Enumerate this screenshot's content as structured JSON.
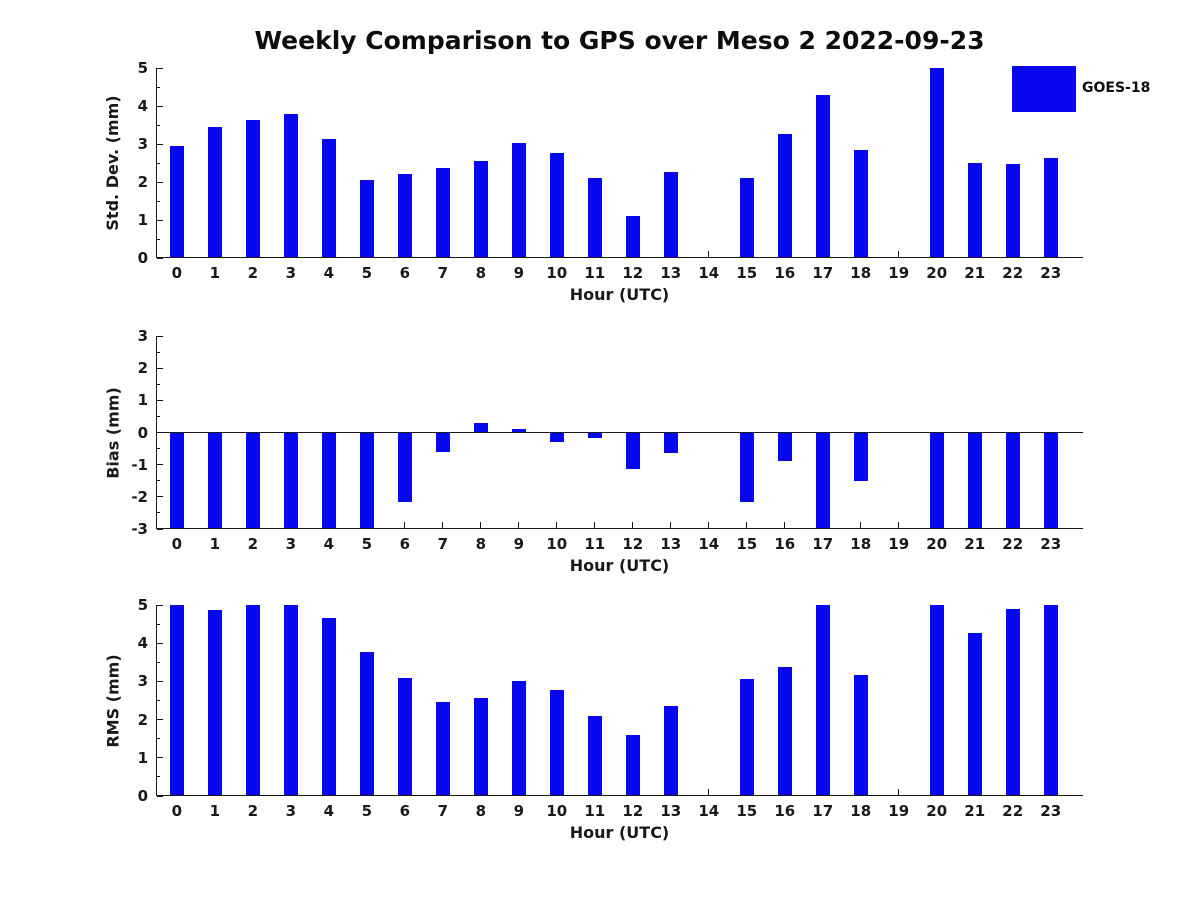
{
  "title": "Weekly Comparison to GPS over Meso 2 2022-09-23",
  "legend": {
    "label": "GOES-18",
    "swatch_color": "#0707f0",
    "position": "top-right"
  },
  "colors": {
    "bar": "#0707f0",
    "axis": "#1a1a1a",
    "text": "#191919",
    "background": "#ffffff"
  },
  "chart_data": [
    {
      "type": "bar",
      "name": "std-dev",
      "ylabel": "Std. Dev. (mm)",
      "xlabel": "Hour (UTC)",
      "categories": [
        "0",
        "1",
        "2",
        "3",
        "4",
        "5",
        "6",
        "7",
        "8",
        "9",
        "10",
        "11",
        "12",
        "13",
        "14",
        "15",
        "16",
        "17",
        "18",
        "19",
        "20",
        "21",
        "22",
        "23"
      ],
      "values": [
        2.96,
        3.45,
        3.63,
        3.79,
        3.13,
        2.05,
        2.2,
        2.37,
        2.55,
        3.03,
        2.77,
        2.1,
        1.11,
        2.26,
        null,
        2.1,
        3.26,
        4.28,
        2.83,
        null,
        5.0,
        2.5,
        2.47,
        2.62
      ],
      "ylim": [
        0,
        5
      ],
      "yticks": [
        0,
        1,
        2,
        3,
        4,
        5
      ],
      "zero_line": false,
      "grid": false
    },
    {
      "type": "bar",
      "name": "bias",
      "ylabel": "Bias (mm)",
      "xlabel": "Hour (UTC)",
      "categories": [
        "0",
        "1",
        "2",
        "3",
        "4",
        "5",
        "6",
        "7",
        "8",
        "9",
        "10",
        "11",
        "12",
        "13",
        "14",
        "15",
        "16",
        "17",
        "18",
        "19",
        "20",
        "21",
        "22",
        "23"
      ],
      "values": [
        -3.0,
        -3.0,
        -3.0,
        -3.0,
        -3.0,
        -3.0,
        -2.17,
        -0.6,
        0.28,
        0.12,
        -0.3,
        -0.17,
        -1.13,
        -0.65,
        null,
        -2.17,
        -0.9,
        -3.0,
        -1.5,
        null,
        -3.0,
        -3.0,
        -3.0,
        -3.0
      ],
      "ylim": [
        -3,
        3
      ],
      "yticks": [
        -3,
        -2,
        -1,
        0,
        1,
        2,
        3
      ],
      "zero_line": true,
      "grid": false
    },
    {
      "type": "bar",
      "name": "rms",
      "ylabel": "RMS (mm)",
      "xlabel": "Hour (UTC)",
      "categories": [
        "0",
        "1",
        "2",
        "3",
        "4",
        "5",
        "6",
        "7",
        "8",
        "9",
        "10",
        "11",
        "12",
        "13",
        "14",
        "15",
        "16",
        "17",
        "18",
        "19",
        "20",
        "21",
        "22",
        "23"
      ],
      "values": [
        5.0,
        4.88,
        5.0,
        5.0,
        4.65,
        3.78,
        3.08,
        2.45,
        2.57,
        3.02,
        2.78,
        2.1,
        1.6,
        2.35,
        null,
        3.05,
        3.38,
        5.0,
        3.18,
        null,
        5.0,
        4.28,
        4.9,
        5.0
      ],
      "ylim": [
        0,
        5
      ],
      "yticks": [
        0,
        1,
        2,
        3,
        4,
        5
      ],
      "zero_line": false,
      "grid": false
    }
  ]
}
